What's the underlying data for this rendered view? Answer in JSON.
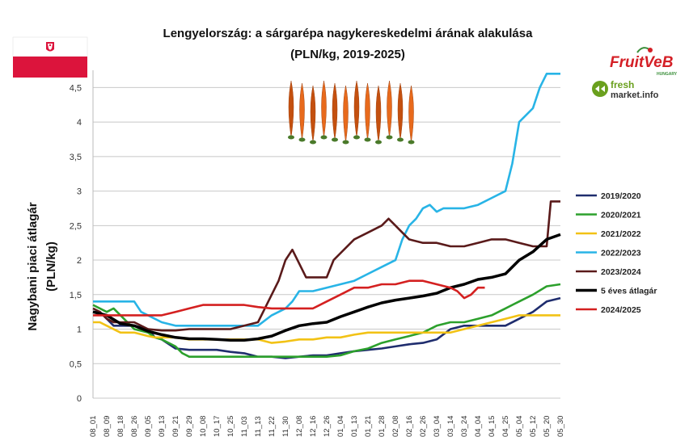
{
  "chart_data": {
    "type": "line",
    "title_line1": "Lengyelország: a sárgarépa nagykereskedelmi árának alakulása",
    "title_line2": "(PLN/kg, 2019-2025)",
    "ylabel_line1": "Nagybani piaci átlagár",
    "ylabel_line2": "(PLN/kg)",
    "xlabel": "",
    "ylim": [
      0,
      4.75
    ],
    "y_ticks": [
      "0",
      "0,5",
      "1",
      "1,5",
      "2",
      "2,5",
      "3",
      "3,5",
      "4",
      "4,5"
    ],
    "y_tick_values": [
      0,
      0.5,
      1,
      1.5,
      2,
      2.5,
      3,
      3.5,
      4,
      4.5
    ],
    "categories": [
      "08_01",
      "08_09",
      "08_18",
      "08_26",
      "09_05",
      "09_13",
      "09_21",
      "09_29",
      "10_08",
      "10_17",
      "10_25",
      "11_03",
      "11_13",
      "11_22",
      "11_30",
      "12_08",
      "12_16",
      "12_26",
      "01_04",
      "01_13",
      "01_21",
      "01_28",
      "02_08",
      "02_16",
      "02_26",
      "03_04",
      "03_14",
      "03_24",
      "04_04",
      "04_15",
      "04_25",
      "05_04",
      "05_12",
      "05_20",
      "05_30"
    ],
    "grid": true,
    "legend_position": "right",
    "series": [
      {
        "name": "2019/2020",
        "color": "#1f2d6e",
        "points": [
          [
            0,
            1.25
          ],
          [
            0.5,
            1.25
          ],
          [
            1,
            1.15
          ],
          [
            1.5,
            1.05
          ],
          [
            2,
            1.05
          ],
          [
            3,
            1.05
          ],
          [
            4,
            1.0
          ],
          [
            4.5,
            0.88
          ],
          [
            5,
            0.85
          ],
          [
            6,
            0.72
          ],
          [
            7,
            0.7
          ],
          [
            8,
            0.7
          ],
          [
            9,
            0.7
          ],
          [
            10,
            0.67
          ],
          [
            11,
            0.65
          ],
          [
            12,
            0.6
          ],
          [
            13,
            0.6
          ],
          [
            14,
            0.58
          ],
          [
            15,
            0.6
          ],
          [
            16,
            0.62
          ],
          [
            17,
            0.62
          ],
          [
            18,
            0.65
          ],
          [
            19,
            0.68
          ],
          [
            20,
            0.7
          ],
          [
            21,
            0.72
          ],
          [
            22,
            0.75
          ],
          [
            23,
            0.78
          ],
          [
            24,
            0.8
          ],
          [
            25,
            0.85
          ],
          [
            26,
            1.0
          ],
          [
            27,
            1.05
          ],
          [
            28,
            1.05
          ],
          [
            29,
            1.05
          ],
          [
            30,
            1.05
          ],
          [
            31,
            1.15
          ],
          [
            32,
            1.25
          ],
          [
            33,
            1.4
          ],
          [
            34,
            1.45
          ]
        ]
      },
      {
        "name": "2020/2021",
        "color": "#2ca02c",
        "points": [
          [
            0,
            1.35
          ],
          [
            0.5,
            1.3
          ],
          [
            1,
            1.25
          ],
          [
            1.5,
            1.3
          ],
          [
            2,
            1.2
          ],
          [
            3,
            1.0
          ],
          [
            4,
            0.95
          ],
          [
            4.5,
            0.88
          ],
          [
            5,
            0.85
          ],
          [
            6,
            0.75
          ],
          [
            6.5,
            0.65
          ],
          [
            7,
            0.6
          ],
          [
            8,
            0.6
          ],
          [
            9,
            0.6
          ],
          [
            10,
            0.6
          ],
          [
            11,
            0.6
          ],
          [
            12,
            0.6
          ],
          [
            13,
            0.6
          ],
          [
            14,
            0.6
          ],
          [
            15,
            0.6
          ],
          [
            16,
            0.6
          ],
          [
            17,
            0.6
          ],
          [
            18,
            0.62
          ],
          [
            19,
            0.68
          ],
          [
            20,
            0.72
          ],
          [
            21,
            0.8
          ],
          [
            22,
            0.85
          ],
          [
            23,
            0.9
          ],
          [
            24,
            0.95
          ],
          [
            25,
            1.05
          ],
          [
            26,
            1.1
          ],
          [
            27,
            1.1
          ],
          [
            28,
            1.15
          ],
          [
            29,
            1.2
          ],
          [
            30,
            1.3
          ],
          [
            31,
            1.4
          ],
          [
            32,
            1.5
          ],
          [
            33,
            1.62
          ],
          [
            34,
            1.65
          ]
        ]
      },
      {
        "name": "2021/2022",
        "color": "#f2c215",
        "points": [
          [
            0,
            1.1
          ],
          [
            0.5,
            1.1
          ],
          [
            1,
            1.05
          ],
          [
            2,
            0.95
          ],
          [
            3,
            0.95
          ],
          [
            4,
            0.9
          ],
          [
            4.5,
            0.88
          ],
          [
            5,
            0.88
          ],
          [
            6,
            0.88
          ],
          [
            7,
            0.85
          ],
          [
            8,
            0.85
          ],
          [
            9,
            0.85
          ],
          [
            10,
            0.85
          ],
          [
            11,
            0.85
          ],
          [
            12,
            0.85
          ],
          [
            13,
            0.8
          ],
          [
            14,
            0.82
          ],
          [
            15,
            0.85
          ],
          [
            16,
            0.85
          ],
          [
            17,
            0.88
          ],
          [
            18,
            0.88
          ],
          [
            19,
            0.92
          ],
          [
            20,
            0.95
          ],
          [
            21,
            0.95
          ],
          [
            22,
            0.95
          ],
          [
            23,
            0.95
          ],
          [
            24,
            0.95
          ],
          [
            25,
            0.95
          ],
          [
            26,
            0.95
          ],
          [
            27,
            1.0
          ],
          [
            28,
            1.05
          ],
          [
            29,
            1.1
          ],
          [
            30,
            1.15
          ],
          [
            31,
            1.2
          ],
          [
            32,
            1.2
          ],
          [
            33,
            1.2
          ],
          [
            34,
            1.2
          ]
        ]
      },
      {
        "name": "2022/2023",
        "color": "#28b4e6",
        "points": [
          [
            0,
            1.4
          ],
          [
            1,
            1.4
          ],
          [
            2,
            1.4
          ],
          [
            3,
            1.4
          ],
          [
            3.5,
            1.25
          ],
          [
            4,
            1.2
          ],
          [
            5,
            1.1
          ],
          [
            6,
            1.05
          ],
          [
            7,
            1.05
          ],
          [
            8,
            1.05
          ],
          [
            9,
            1.05
          ],
          [
            10,
            1.05
          ],
          [
            11,
            1.05
          ],
          [
            12,
            1.05
          ],
          [
            13,
            1.2
          ],
          [
            14,
            1.3
          ],
          [
            14.5,
            1.4
          ],
          [
            15,
            1.55
          ],
          [
            16,
            1.55
          ],
          [
            17,
            1.6
          ],
          [
            18,
            1.65
          ],
          [
            19,
            1.7
          ],
          [
            20,
            1.8
          ],
          [
            21,
            1.9
          ],
          [
            22,
            2.0
          ],
          [
            22.5,
            2.3
          ],
          [
            23,
            2.5
          ],
          [
            23.5,
            2.6
          ],
          [
            24,
            2.75
          ],
          [
            24.5,
            2.8
          ],
          [
            25,
            2.7
          ],
          [
            25.5,
            2.75
          ],
          [
            26,
            2.75
          ],
          [
            27,
            2.75
          ],
          [
            28,
            2.8
          ],
          [
            29,
            2.9
          ],
          [
            30,
            3.0
          ],
          [
            30.5,
            3.4
          ],
          [
            31,
            4.0
          ],
          [
            31.5,
            4.1
          ],
          [
            32,
            4.2
          ],
          [
            32.5,
            4.5
          ],
          [
            33,
            4.7
          ],
          [
            34,
            4.7
          ]
        ]
      },
      {
        "name": "2023/2024",
        "color": "#5a1a1a",
        "points": [
          [
            0,
            1.3
          ],
          [
            0.5,
            1.25
          ],
          [
            1,
            1.15
          ],
          [
            1.5,
            1.1
          ],
          [
            2,
            1.1
          ],
          [
            3,
            1.1
          ],
          [
            4,
            1.0
          ],
          [
            5,
            0.98
          ],
          [
            6,
            0.98
          ],
          [
            7,
            1.0
          ],
          [
            8,
            1.0
          ],
          [
            9,
            1.0
          ],
          [
            10,
            1.0
          ],
          [
            11,
            1.05
          ],
          [
            12,
            1.1
          ],
          [
            12.5,
            1.3
          ],
          [
            13,
            1.5
          ],
          [
            13.5,
            1.7
          ],
          [
            14,
            2.0
          ],
          [
            14.5,
            2.15
          ],
          [
            15,
            1.95
          ],
          [
            15.5,
            1.75
          ],
          [
            16,
            1.75
          ],
          [
            17,
            1.75
          ],
          [
            17.5,
            2.0
          ],
          [
            18,
            2.1
          ],
          [
            19,
            2.3
          ],
          [
            20,
            2.4
          ],
          [
            21,
            2.5
          ],
          [
            21.5,
            2.6
          ],
          [
            22,
            2.5
          ],
          [
            22.5,
            2.4
          ],
          [
            23,
            2.3
          ],
          [
            24,
            2.25
          ],
          [
            25,
            2.25
          ],
          [
            26,
            2.2
          ],
          [
            27,
            2.2
          ],
          [
            28,
            2.25
          ],
          [
            29,
            2.3
          ],
          [
            30,
            2.3
          ],
          [
            31,
            2.25
          ],
          [
            32,
            2.2
          ],
          [
            33,
            2.2
          ],
          [
            33.3,
            2.85
          ],
          [
            34,
            2.85
          ]
        ]
      },
      {
        "name": "5 éves átlagár",
        "color": "#000000",
        "points": [
          [
            0,
            1.25
          ],
          [
            1,
            1.2
          ],
          [
            2,
            1.08
          ],
          [
            3,
            1.05
          ],
          [
            4,
            0.97
          ],
          [
            5,
            0.92
          ],
          [
            6,
            0.88
          ],
          [
            7,
            0.86
          ],
          [
            8,
            0.86
          ],
          [
            9,
            0.85
          ],
          [
            10,
            0.84
          ],
          [
            11,
            0.84
          ],
          [
            12,
            0.86
          ],
          [
            13,
            0.9
          ],
          [
            14,
            0.98
          ],
          [
            15,
            1.05
          ],
          [
            16,
            1.08
          ],
          [
            17,
            1.1
          ],
          [
            18,
            1.18
          ],
          [
            19,
            1.25
          ],
          [
            20,
            1.32
          ],
          [
            21,
            1.38
          ],
          [
            22,
            1.42
          ],
          [
            23,
            1.45
          ],
          [
            24,
            1.48
          ],
          [
            25,
            1.52
          ],
          [
            26,
            1.6
          ],
          [
            27,
            1.65
          ],
          [
            28,
            1.72
          ],
          [
            29,
            1.75
          ],
          [
            30,
            1.8
          ],
          [
            31,
            2.0
          ],
          [
            32,
            2.12
          ],
          [
            33,
            2.3
          ],
          [
            34,
            2.37
          ]
        ]
      },
      {
        "name": "2024/2025",
        "color": "#d42020",
        "points": [
          [
            0,
            1.2
          ],
          [
            1,
            1.2
          ],
          [
            2,
            1.2
          ],
          [
            3,
            1.2
          ],
          [
            4,
            1.2
          ],
          [
            5,
            1.2
          ],
          [
            6,
            1.25
          ],
          [
            7,
            1.3
          ],
          [
            8,
            1.35
          ],
          [
            9,
            1.35
          ],
          [
            10,
            1.35
          ],
          [
            11,
            1.35
          ],
          [
            12,
            1.32
          ],
          [
            13,
            1.3
          ],
          [
            14,
            1.3
          ],
          [
            15,
            1.3
          ],
          [
            16,
            1.3
          ],
          [
            17,
            1.4
          ],
          [
            18,
            1.5
          ],
          [
            19,
            1.6
          ],
          [
            20,
            1.6
          ],
          [
            21,
            1.65
          ],
          [
            22,
            1.65
          ],
          [
            23,
            1.7
          ],
          [
            24,
            1.7
          ],
          [
            25,
            1.65
          ],
          [
            26,
            1.6
          ],
          [
            26.5,
            1.55
          ],
          [
            27,
            1.45
          ],
          [
            27.5,
            1.5
          ],
          [
            28,
            1.6
          ],
          [
            28.5,
            1.6
          ]
        ]
      }
    ]
  },
  "logos": {
    "fruitveb_text": "FruitVeB",
    "fruitveb_sub": "HUNGARY",
    "freshmarket_text1": "fresh",
    "freshmarket_text2": "market.info"
  },
  "colors": {
    "flag_white": "#ffffff",
    "flag_red": "#dc143c",
    "carrot": "#e86a1c",
    "carrot_dark": "#c4500f",
    "carrot_green": "#4a7a2a",
    "fruitveb_red": "#d41f26",
    "fruitveb_green": "#3a8f3a",
    "freshmarket_green": "#6aa01e"
  }
}
